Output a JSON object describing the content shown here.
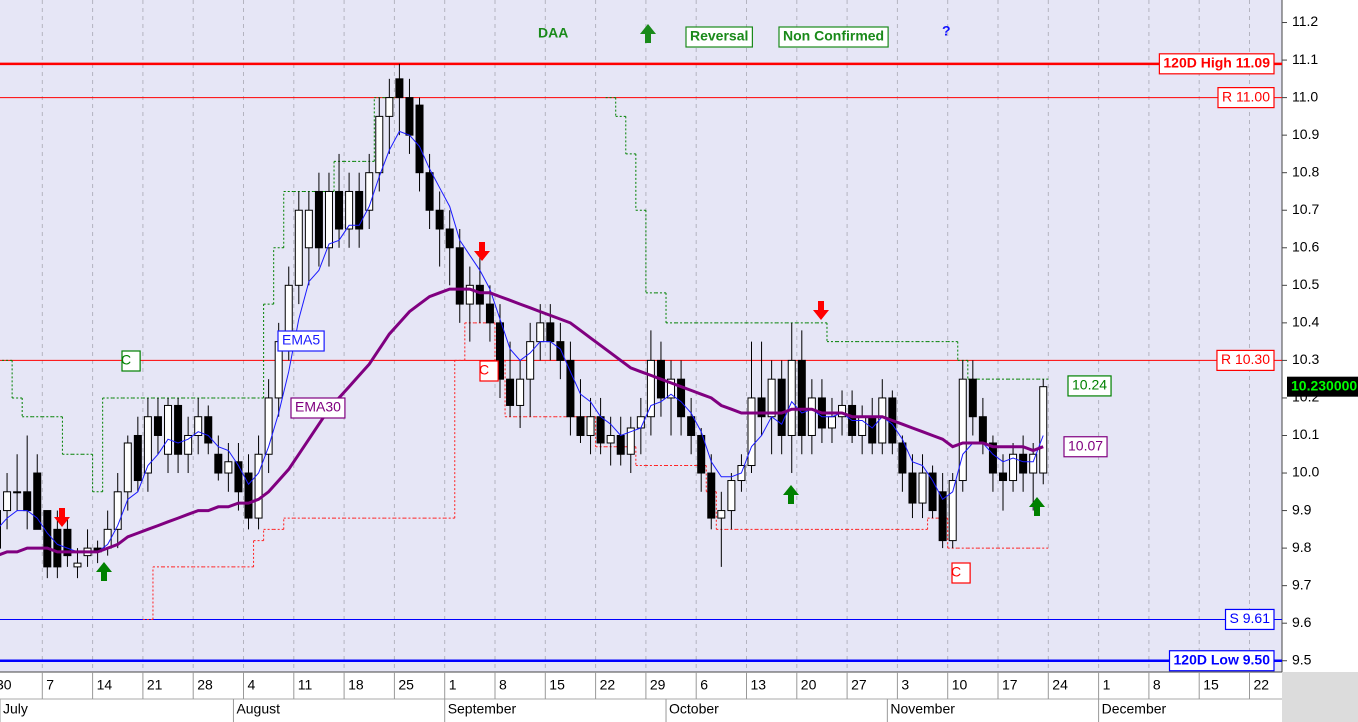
{
  "chart_data": {
    "type": "candlestick",
    "title": "DAA",
    "title_color": "#1a8a1a",
    "annotations": [
      "Reversal",
      "Non Confirmed",
      "?"
    ],
    "background": "#e6e6f6",
    "grid": "vertical",
    "ylim": [
      9.47,
      11.26
    ],
    "yticks": [
      9.5,
      9.6,
      9.7,
      9.8,
      9.9,
      {
        "value": 10,
        "label": "10.0"
      },
      10.1,
      10.2,
      10.3,
      10.4,
      10.5,
      10.6,
      10.7,
      10.8,
      10.9,
      {
        "value": 11,
        "label": "11.0"
      },
      11.1,
      11.2
    ],
    "categories": [
      "30",
      null,
      null,
      null,
      null,
      "7",
      null,
      null,
      null,
      null,
      "14",
      null,
      null,
      null,
      null,
      "21",
      null,
      null,
      null,
      null,
      "28",
      null,
      null,
      null,
      null,
      "4",
      null,
      null,
      null,
      null,
      "11",
      null,
      null,
      null,
      null,
      "18",
      null,
      null,
      null,
      null,
      "25",
      null,
      null,
      null,
      null,
      "1",
      null,
      null,
      null,
      null,
      "8",
      null,
      null,
      null,
      null,
      "15",
      null,
      null,
      null,
      null,
      "22",
      null,
      null,
      null,
      null,
      "29",
      null,
      null,
      null,
      null,
      "6",
      null,
      null,
      null,
      null,
      "13",
      null,
      null,
      null,
      null,
      "20",
      null,
      null,
      null,
      null,
      "27",
      null,
      null,
      null,
      null,
      "3",
      null,
      null,
      null,
      null,
      "10",
      null,
      null,
      null,
      null,
      "17",
      null,
      null,
      null,
      null,
      "24",
      null,
      null,
      null,
      null,
      "1",
      null,
      null,
      null,
      null,
      "8",
      null,
      null,
      null,
      null,
      "15",
      null,
      null,
      null,
      null,
      "22"
    ],
    "months": [
      "July",
      "August",
      "September",
      "October",
      "November",
      "December"
    ],
    "open": [
      9.8,
      9.9,
      9.95,
      9.95,
      10.0,
      9.9,
      9.85,
      9.85,
      9.75,
      9.78,
      9.8,
      9.8,
      9.85,
      9.95,
      10.1,
      10.0,
      10.15,
      10.05,
      10.18,
      10.05,
      10.1,
      10.15,
      10.05,
      10.0,
      10.03,
      10.0,
      9.88,
      10.05,
      10.2,
      10.35,
      10.5,
      10.6,
      10.75,
      10.6,
      10.75,
      10.65,
      10.75,
      10.7,
      10.8,
      10.95,
      11.05,
      11.0,
      10.98,
      10.8,
      10.7,
      10.65,
      10.6,
      10.45,
      10.5,
      10.45,
      10.4,
      10.25,
      10.18,
      10.25,
      10.35,
      10.4,
      10.35,
      10.3,
      10.15,
      10.1,
      10.15,
      10.08,
      10.1,
      10.05,
      10.12,
      10.15,
      10.3,
      10.2,
      10.25,
      10.15,
      10.1,
      10.0,
      9.88,
      9.9,
      9.98,
      10.02,
      10.2,
      10.15,
      10.25,
      10.1,
      10.3,
      10.1,
      10.2,
      10.12,
      10.15,
      10.18,
      10.1,
      10.15,
      10.08,
      10.2,
      10.08,
      10.0,
      9.92,
      10.0,
      9.95,
      9.82,
      9.98,
      10.25,
      10.15,
      10.08,
      10.0,
      9.98,
      10.05,
      10.0,
      10.0,
      null,
      null,
      null,
      null,
      null,
      null,
      null,
      null,
      null,
      null,
      null,
      null,
      null,
      null,
      null,
      null,
      null,
      null,
      null,
      null,
      null
    ],
    "high": [
      9.95,
      10.0,
      10.05,
      10.1,
      10.05,
      9.9,
      9.9,
      9.88,
      9.8,
      9.85,
      9.82,
      9.9,
      10.0,
      10.1,
      10.15,
      10.2,
      10.2,
      10.2,
      10.2,
      10.15,
      10.2,
      10.18,
      10.1,
      10.08,
      10.08,
      10.05,
      10.1,
      10.25,
      10.4,
      10.55,
      10.75,
      10.75,
      10.8,
      10.8,
      10.85,
      10.8,
      10.8,
      10.85,
      11.0,
      11.05,
      11.09,
      11.05,
      11.0,
      10.85,
      10.75,
      10.7,
      10.65,
      10.55,
      10.6,
      10.5,
      10.45,
      10.35,
      10.3,
      10.4,
      10.45,
      10.45,
      10.4,
      10.35,
      10.25,
      10.2,
      10.2,
      10.15,
      10.15,
      10.15,
      10.2,
      10.38,
      10.35,
      10.3,
      10.3,
      10.2,
      10.12,
      10.05,
      9.95,
      10.0,
      10.05,
      10.35,
      10.35,
      10.3,
      10.3,
      10.4,
      10.38,
      10.25,
      10.25,
      10.2,
      10.22,
      10.22,
      10.18,
      10.2,
      10.25,
      10.22,
      10.1,
      10.05,
      10.05,
      10.02,
      10.0,
      10.0,
      10.3,
      10.3,
      10.2,
      10.1,
      10.05,
      10.08,
      10.1,
      10.08,
      10.25,
      null,
      null,
      null,
      null,
      null,
      null,
      null,
      null,
      null,
      null,
      null,
      null,
      null,
      null,
      null,
      null,
      null,
      null,
      null,
      null,
      null
    ],
    "low": [
      9.75,
      9.85,
      9.9,
      9.85,
      9.85,
      9.72,
      9.72,
      9.75,
      9.72,
      9.75,
      9.76,
      9.78,
      9.8,
      9.9,
      9.95,
      9.95,
      10.05,
      10.0,
      10.0,
      10.0,
      10.05,
      10.05,
      9.98,
      9.95,
      9.9,
      9.85,
      9.85,
      10.0,
      10.15,
      10.3,
      10.45,
      10.5,
      10.55,
      10.55,
      10.6,
      10.6,
      10.6,
      10.65,
      10.75,
      10.85,
      10.9,
      10.85,
      10.75,
      10.65,
      10.55,
      10.5,
      10.4,
      10.35,
      10.4,
      10.35,
      10.2,
      10.15,
      10.12,
      10.15,
      10.3,
      10.3,
      10.25,
      10.1,
      10.08,
      10.05,
      10.05,
      10.02,
      10.02,
      10.0,
      10.05,
      10.1,
      10.15,
      10.1,
      10.1,
      10.05,
      9.95,
      9.85,
      9.75,
      9.85,
      9.95,
      10.0,
      10.1,
      10.05,
      10.05,
      10.0,
      10.05,
      10.05,
      10.08,
      10.08,
      10.1,
      10.08,
      10.05,
      10.05,
      10.05,
      10.05,
      9.95,
      9.88,
      9.88,
      9.88,
      9.8,
      9.8,
      9.95,
      10.1,
      10.05,
      9.95,
      9.9,
      9.95,
      9.95,
      9.9,
      9.97,
      null,
      null,
      null,
      null,
      null,
      null,
      null,
      null,
      null,
      null,
      null,
      null,
      null,
      null,
      null,
      null,
      null,
      null,
      null,
      null,
      null
    ],
    "close": [
      9.9,
      9.95,
      9.95,
      9.9,
      9.85,
      9.75,
      9.75,
      9.78,
      9.76,
      9.8,
      9.79,
      9.85,
      9.95,
      10.08,
      9.98,
      10.15,
      10.1,
      10.18,
      10.05,
      10.1,
      10.15,
      10.08,
      10.0,
      10.03,
      9.95,
      9.88,
      10.05,
      10.2,
      10.35,
      10.5,
      10.7,
      10.7,
      10.6,
      10.75,
      10.65,
      10.75,
      10.65,
      10.8,
      10.95,
      11.0,
      11.0,
      10.9,
      10.8,
      10.7,
      10.65,
      10.6,
      10.45,
      10.5,
      10.45,
      10.4,
      10.25,
      10.18,
      10.25,
      10.35,
      10.4,
      10.35,
      10.3,
      10.15,
      10.1,
      10.15,
      10.08,
      10.1,
      10.05,
      10.12,
      10.15,
      10.3,
      10.2,
      10.25,
      10.15,
      10.1,
      10.0,
      9.88,
      9.9,
      9.98,
      10.02,
      10.2,
      10.15,
      10.25,
      10.1,
      10.3,
      10.1,
      10.2,
      10.12,
      10.15,
      10.18,
      10.1,
      10.15,
      10.08,
      10.2,
      10.08,
      10.0,
      9.92,
      10.0,
      9.9,
      9.82,
      9.98,
      10.25,
      10.15,
      10.08,
      10.0,
      9.98,
      10.05,
      10.0,
      10.05,
      10.23,
      null,
      null,
      null,
      null,
      null,
      null,
      null,
      null,
      null,
      null,
      null,
      null,
      null,
      null,
      null,
      null,
      null,
      null,
      null,
      null,
      null
    ],
    "lines": [
      {
        "name": "EMA5",
        "color": "#1a1aff",
        "width": 1,
        "style": "solid",
        "values": [
          9.85,
          9.88,
          9.9,
          9.9,
          9.88,
          9.84,
          9.81,
          9.8,
          9.79,
          9.79,
          9.79,
          9.81,
          9.86,
          9.93,
          9.95,
          10.02,
          10.05,
          10.09,
          10.08,
          10.09,
          10.11,
          10.1,
          10.07,
          10.06,
          10.02,
          9.97,
          10.0,
          10.07,
          10.16,
          10.27,
          10.41,
          10.51,
          10.54,
          10.61,
          10.62,
          10.66,
          10.66,
          10.71,
          10.79,
          10.86,
          10.91,
          10.9,
          10.87,
          10.81,
          10.76,
          10.71,
          10.62,
          10.58,
          10.54,
          10.49,
          10.41,
          10.33,
          10.3,
          10.32,
          10.35,
          10.35,
          10.33,
          10.27,
          10.21,
          10.19,
          10.15,
          10.13,
          10.1,
          10.11,
          10.12,
          10.18,
          10.19,
          10.21,
          10.19,
          10.16,
          10.11,
          10.03,
          9.99,
          9.99,
          10.0,
          10.07,
          10.1,
          10.15,
          10.13,
          10.19,
          10.16,
          10.17,
          10.15,
          10.15,
          10.16,
          10.14,
          10.14,
          10.12,
          10.15,
          10.13,
          10.09,
          10.03,
          10.02,
          9.98,
          9.93,
          9.95,
          10.05,
          10.08,
          10.08,
          10.05,
          10.03,
          10.04,
          10.03,
          10.03,
          10.1,
          null,
          null,
          null,
          null,
          null,
          null,
          null,
          null,
          null,
          null,
          null,
          null,
          null,
          null,
          null,
          null,
          null,
          null,
          null,
          null,
          null
        ]
      },
      {
        "name": "EMA30",
        "color": "#800080",
        "width": 3,
        "style": "solid",
        "values": [
          9.78,
          9.79,
          9.79,
          9.8,
          9.8,
          9.8,
          9.79,
          9.79,
          9.79,
          9.79,
          9.79,
          9.8,
          9.81,
          9.83,
          9.84,
          9.85,
          9.86,
          9.87,
          9.88,
          9.89,
          9.9,
          9.9,
          9.91,
          9.91,
          9.92,
          9.92,
          9.93,
          9.95,
          9.98,
          10.01,
          10.05,
          10.09,
          10.13,
          10.17,
          10.2,
          10.23,
          10.26,
          10.29,
          10.33,
          10.37,
          10.4,
          10.43,
          10.45,
          10.47,
          10.48,
          10.49,
          10.49,
          10.49,
          10.48,
          10.48,
          10.47,
          10.46,
          10.45,
          10.44,
          10.43,
          10.42,
          10.41,
          10.4,
          10.38,
          10.36,
          10.34,
          10.32,
          10.3,
          10.28,
          10.27,
          10.26,
          10.25,
          10.24,
          10.23,
          10.22,
          10.21,
          10.2,
          10.18,
          10.17,
          10.16,
          10.16,
          10.16,
          10.16,
          10.16,
          10.17,
          10.17,
          10.17,
          10.16,
          10.16,
          10.16,
          10.15,
          10.15,
          10.15,
          10.15,
          10.14,
          10.13,
          10.12,
          10.11,
          10.1,
          10.09,
          10.07,
          10.08,
          10.08,
          10.08,
          10.07,
          10.07,
          10.07,
          10.07,
          10.06,
          10.07,
          null,
          null,
          null,
          null,
          null,
          null,
          null,
          null,
          null,
          null,
          null,
          null,
          null,
          null,
          null,
          null,
          null,
          null,
          null,
          null,
          null
        ]
      },
      {
        "color": "#008000",
        "width": 1,
        "style": "step",
        "values": [
          null,
          10.3,
          10.2,
          10.15,
          10.15,
          10.15,
          10.15,
          10.05,
          10.05,
          10.05,
          9.95,
          10.2,
          10.2,
          10.2,
          10.2,
          10.2,
          10.2,
          10.2,
          10.2,
          10.2,
          10.2,
          10.2,
          10.2,
          10.2,
          10.2,
          10.2,
          10.2,
          10.45,
          10.6,
          10.75,
          10.75,
          10.75,
          10.75,
          10.75,
          10.83,
          10.83,
          10.83,
          10.83,
          11.0,
          11.0,
          null,
          null,
          null,
          null,
          null,
          null,
          null,
          null,
          null,
          null,
          null,
          null,
          null,
          null,
          null,
          null,
          null,
          null,
          null,
          null,
          null,
          11.0,
          10.95,
          10.85,
          10.7,
          10.48,
          10.48,
          10.4,
          10.4,
          10.4,
          10.4,
          10.4,
          10.4,
          10.4,
          10.4,
          10.4,
          10.4,
          10.4,
          10.4,
          10.4,
          10.4,
          10.4,
          10.4,
          10.35,
          10.35,
          10.35,
          10.35,
          10.35,
          10.35,
          10.35,
          10.35,
          10.35,
          10.35,
          10.35,
          10.35,
          10.35,
          10.3,
          10.25,
          10.25,
          10.25,
          10.25,
          10.25,
          10.25,
          10.25,
          10.25,
          null,
          null,
          null,
          null,
          null,
          null,
          null,
          null,
          null,
          null,
          null,
          null,
          null,
          null,
          null,
          null,
          null,
          null,
          null,
          null,
          null
        ]
      },
      {
        "color": "#ff2020",
        "width": 1,
        "style": "step",
        "values": [
          null,
          null,
          null,
          null,
          null,
          null,
          null,
          null,
          null,
          null,
          null,
          null,
          null,
          null,
          null,
          9.61,
          9.75,
          9.75,
          9.75,
          9.75,
          9.75,
          9.75,
          9.75,
          9.75,
          9.75,
          9.75,
          9.82,
          9.85,
          9.85,
          9.88,
          9.88,
          9.88,
          9.88,
          9.88,
          9.88,
          9.88,
          9.88,
          9.88,
          9.88,
          9.88,
          9.88,
          9.88,
          9.88,
          9.88,
          9.88,
          9.88,
          10.3,
          10.4,
          10.4,
          10.4,
          10.3,
          10.15,
          10.15,
          10.15,
          10.15,
          10.15,
          10.15,
          10.15,
          10.15,
          10.15,
          10.07,
          10.07,
          10.07,
          10.07,
          10.02,
          10.02,
          10.02,
          10.02,
          10.02,
          10.02,
          10.02,
          9.95,
          9.85,
          9.85,
          9.85,
          9.85,
          9.85,
          9.85,
          9.85,
          9.85,
          9.85,
          9.85,
          9.85,
          9.85,
          9.85,
          9.85,
          9.85,
          9.85,
          9.85,
          9.85,
          9.85,
          9.85,
          9.85,
          9.88,
          9.88,
          9.8,
          9.8,
          9.8,
          9.8,
          9.8,
          9.8,
          9.8,
          9.8,
          9.8,
          9.8,
          null,
          null,
          null,
          null,
          null,
          null,
          null,
          null,
          null,
          null,
          null,
          null,
          null,
          null,
          null,
          null,
          null,
          null,
          null,
          null,
          null
        ]
      }
    ],
    "levels": [
      {
        "label": "120D High 11.09",
        "value": 11.09,
        "color": "#ff0000",
        "width": 2.5,
        "bold": true
      },
      {
        "label": "R 11.00",
        "value": 11.0,
        "color": "#ff0000",
        "width": 1
      },
      {
        "label": "R 10.30",
        "value": 10.3,
        "color": "#ff0000",
        "width": 1
      },
      {
        "label": "S 9.61",
        "value": 9.61,
        "color": "#0000ff",
        "width": 1
      },
      {
        "label": "120D Low 9.50",
        "value": 9.5,
        "color": "#0000ff",
        "width": 2.5,
        "bold": true
      }
    ],
    "value_tags": [
      {
        "value": 10.24,
        "color": "#008000"
      },
      {
        "value": 10.07,
        "color": "#800080"
      }
    ],
    "last_price": {
      "value": 10.23,
      "label": "10.230000"
    },
    "markers": [
      {
        "label": "C",
        "color": "#008000"
      },
      {
        "label": "C",
        "color": "#ff0000"
      },
      {
        "label": "C",
        "color": "#ff0000"
      }
    ]
  }
}
